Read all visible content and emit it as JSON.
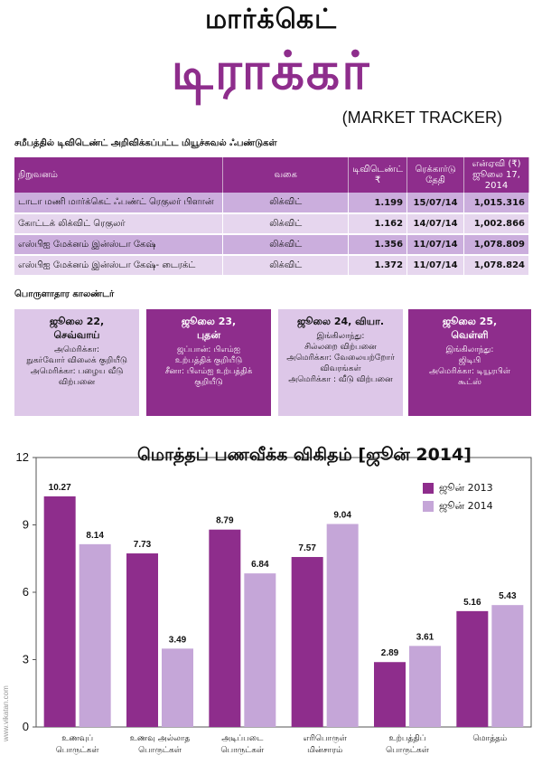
{
  "header": {
    "title_top": "மார்க்கெட்",
    "title_main": "டிராக்கர்",
    "title_en": "(MARKET TRACKER)"
  },
  "dividends": {
    "section_title": "சமீபத்தில் டிவிடெண்ட் அறிவிக்கப்பட்ட மியூச்சுவல் ஃபண்டுகள்",
    "columns": {
      "name": "நிறுவனம்",
      "type": "வகை",
      "dividend": "டிவிடெண்ட் ₹",
      "record_date": "ரெக்கார்டு தேதி",
      "nav": "என்ஏவி (₹) ஜூலை 17, 2014"
    },
    "rows": [
      {
        "name": "டாடா மணி மார்க்கெட் ஃபண்ட் ரெகுலர் பிளான்",
        "type": "லிக்விட்",
        "dividend": "1.199",
        "date": "15/07/14",
        "nav": "1,015.316"
      },
      {
        "name": "கோட்டக் லிக்விட் ரெகுலர்",
        "type": "லிக்விட்",
        "dividend": "1.162",
        "date": "14/07/14",
        "nav": "1,002.866"
      },
      {
        "name": "எஸ்பிஐ மேக்னம் இன்ஸ்டா கேஷ்",
        "type": "லிக்விட்",
        "dividend": "1.356",
        "date": "11/07/14",
        "nav": "1,078.809"
      },
      {
        "name": "எஸ்பிஐ மேக்னம் இன்ஸ்டா கேஷ்- டைரக்ட்",
        "type": "லிக்விட்",
        "dividend": "1.372",
        "date": "11/07/14",
        "nav": "1,078.824"
      }
    ]
  },
  "calendar": {
    "section_title": "பொருளாதார காலண்டர்",
    "boxes": [
      {
        "date_line1": "ஜூலை 22,",
        "date_line2": "செவ்வாய்",
        "lines": [
          "அமெரிக்கா:",
          "நுகர்வோர் விலைக் குறியீடு",
          "அமெரிக்கா: பழைய வீடு",
          "விற்பனை"
        ]
      },
      {
        "date_line1": "ஜூலை 23,",
        "date_line2": "புதன்",
        "lines": [
          "ஜப்பான்: பிஎம்ஐ",
          "உற்பத்திக் குறியீடு",
          "சீனா: பிஎம்ஐ உற்பத்திக்",
          "குறியீடு"
        ]
      },
      {
        "date_line1": "ஜூலை 24, வியா.",
        "date_line2": "",
        "lines": [
          "இங்கிலாந்து:",
          "சில்லறை விற்பனை",
          "அமெரிக்கா: வேலையற்றோர்",
          "விவரங்கள்",
          "அமெரிக்கா : வீடு விற்பனை"
        ]
      },
      {
        "date_line1": "ஜூலை 25,",
        "date_line2": "வெள்ளி",
        "lines": [
          "இங்கிலாந்து:",
          "ஜிடிபி",
          "அமெரிக்கா: டியூரபிள்",
          "கூட்ஸ்"
        ]
      }
    ]
  },
  "chart_title": "மொத்தப் பணவீக்க விகிதம் [ஜூன் 2014]",
  "side_text": "www.vikatan.com",
  "colors": {
    "purple": "#8e2d8c",
    "lavender": "#c5a6d8"
  },
  "chart_data": {
    "type": "bar",
    "title": "மொத்தப் பணவீக்க விகிதம் [ஜூன் 2014]",
    "categories": [
      [
        "உணவுப்",
        "பொருட்கள்"
      ],
      [
        "உணவு அல்லாத",
        "பொருட்கள்"
      ],
      [
        "அடிப்படை",
        "பொருட்கள்"
      ],
      [
        "எரிபொருள்",
        "மின்சாரம்"
      ],
      [
        "உற்பத்திப்",
        "பொருட்கள்"
      ],
      [
        "மொத்தம்"
      ]
    ],
    "series": [
      {
        "name": "ஜூன் 2013",
        "color": "#8e2d8c",
        "values": [
          10.27,
          7.73,
          8.79,
          7.57,
          2.89,
          5.16
        ]
      },
      {
        "name": "ஜூன் 2014",
        "color": "#c5a6d8",
        "values": [
          8.14,
          3.49,
          6.84,
          9.04,
          3.61,
          5.43
        ]
      }
    ],
    "ylim": [
      0,
      12
    ],
    "yticks": [
      0,
      3,
      6,
      9,
      12
    ],
    "legend_position": "top-right",
    "grid": false
  }
}
